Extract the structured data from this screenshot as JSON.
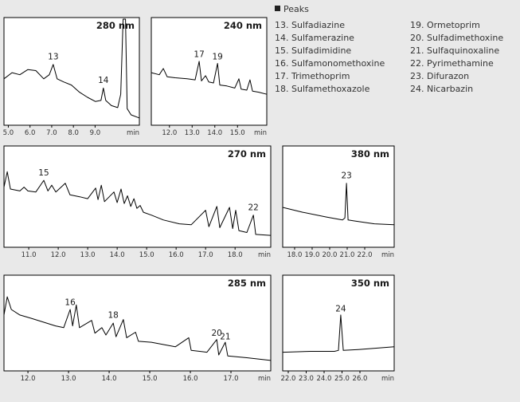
{
  "chart_data": [
    {
      "type": "line",
      "title": "280 nm",
      "xlabel": "min",
      "color": "#000000",
      "x": [
        4.8,
        5.17,
        5.53,
        5.9,
        6.27,
        6.63,
        6.89,
        7.07,
        7.25,
        7.55,
        7.91,
        8.28,
        8.65,
        9.01,
        9.27,
        9.38,
        9.49,
        9.75,
        10.04,
        10.18,
        10.29,
        10.4,
        10.48,
        10.66,
        11.03
      ],
      "values": [
        42,
        48,
        46,
        51,
        50,
        42,
        46,
        56,
        42,
        39,
        36,
        29,
        24,
        20,
        21,
        33,
        21,
        16,
        14,
        27,
        100,
        100,
        13,
        7,
        4
      ],
      "xlim": [
        4.8,
        11.04
      ],
      "ylim": [
        0,
        100
      ],
      "xticks": [
        {
          "value": 5,
          "label": "5.0"
        },
        {
          "value": 6,
          "label": "6.0"
        },
        {
          "value": 7,
          "label": "7.0"
        },
        {
          "value": 8,
          "label": "8.0"
        },
        {
          "value": 9,
          "label": "9.0"
        }
      ],
      "annotations": [
        {
          "text": "13",
          "x": 7.07,
          "y": 61
        },
        {
          "text": "14",
          "x": 9.38,
          "y": 38
        }
      ]
    },
    {
      "type": "line",
      "title": "240 nm",
      "xlabel": "min",
      "color": "#000000",
      "x": [
        11.2,
        11.55,
        11.73,
        11.9,
        12.25,
        12.78,
        13.13,
        13.31,
        13.41,
        13.59,
        13.73,
        13.94,
        14.12,
        14.22,
        14.53,
        14.88,
        15.06,
        15.16,
        15.41,
        15.55,
        15.66,
        15.94,
        16.29
      ],
      "values": [
        48,
        46,
        52,
        44,
        43,
        42,
        41,
        59,
        40,
        45,
        39,
        38,
        57,
        36,
        35,
        33,
        42,
        32,
        31,
        41,
        30,
        29,
        27
      ],
      "xlim": [
        11.2,
        16.29
      ],
      "ylim": [
        0,
        100
      ],
      "xticks": [
        {
          "value": 12,
          "label": "12.0"
        },
        {
          "value": 13,
          "label": "13.0"
        },
        {
          "value": 14,
          "label": "14.0"
        },
        {
          "value": 15,
          "label": "15.0"
        }
      ],
      "annotations": [
        {
          "text": "17",
          "x": 13.31,
          "y": 63
        },
        {
          "text": "19",
          "x": 14.12,
          "y": 61
        }
      ]
    },
    {
      "type": "line",
      "title": "270 nm",
      "xlabel": "min",
      "color": "#000000",
      "x": [
        10.16,
        10.27,
        10.38,
        10.7,
        10.84,
        10.97,
        11.24,
        11.51,
        11.65,
        11.78,
        11.92,
        12.24,
        12.4,
        12.73,
        13.0,
        13.27,
        13.35,
        13.46,
        13.57,
        13.89,
        14.0,
        14.13,
        14.24,
        14.35,
        14.46,
        14.57,
        14.67,
        14.78,
        14.89,
        15.16,
        15.57,
        16.11,
        16.51,
        17.0,
        17.11,
        17.38,
        17.48,
        17.81,
        17.92,
        18.02,
        18.13,
        18.4,
        18.62,
        18.7,
        19.21
      ],
      "values": [
        59,
        75,
        57,
        55,
        59,
        55,
        54,
        66,
        55,
        61,
        54,
        63,
        51,
        49,
        47,
        58,
        46,
        61,
        44,
        54,
        43,
        57,
        42,
        50,
        39,
        47,
        37,
        40,
        33,
        30,
        25,
        21,
        20,
        35,
        18,
        39,
        17,
        38,
        16,
        35,
        14,
        12,
        30,
        10,
        9
      ],
      "xlim": [
        10.16,
        19.21
      ],
      "ylim": [
        0,
        100
      ],
      "xticks": [
        {
          "value": 11,
          "label": "11.0"
        },
        {
          "value": 12,
          "label": "12.0"
        },
        {
          "value": 13,
          "label": "13.0"
        },
        {
          "value": 14,
          "label": "14.0"
        },
        {
          "value": 15,
          "label": "15.0"
        },
        {
          "value": 16,
          "label": "16.0"
        },
        {
          "value": 17,
          "label": "17.0"
        },
        {
          "value": 18,
          "label": "18.0"
        }
      ],
      "annotations": [
        {
          "text": "15",
          "x": 11.51,
          "y": 71
        },
        {
          "text": "22",
          "x": 18.62,
          "y": 35
        }
      ]
    },
    {
      "type": "line",
      "title": "380 nm",
      "xlabel": "min",
      "color": "#000000",
      "x": [
        17.32,
        18.46,
        19.82,
        20.73,
        20.87,
        20.96,
        21.05,
        21.41,
        22.55,
        23.68
      ],
      "values": [
        38,
        33,
        28,
        25,
        27,
        63,
        25,
        24,
        21,
        20
      ],
      "xlim": [
        17.32,
        23.68
      ],
      "ylim": [
        0,
        100
      ],
      "xticks": [
        {
          "value": 18,
          "label": "18.0"
        },
        {
          "value": 19,
          "label": "19.0"
        },
        {
          "value": 20,
          "label": "20.0"
        },
        {
          "value": 21,
          "label": "21.0"
        },
        {
          "value": 22,
          "label": "22.0"
        }
      ],
      "annotations": [
        {
          "text": "23",
          "x": 20.96,
          "y": 68
        }
      ]
    },
    {
      "type": "line",
      "title": "285 nm",
      "xlabel": "min",
      "color": "#000000",
      "x": [
        11.41,
        11.49,
        11.59,
        11.8,
        12.1,
        12.39,
        12.68,
        12.88,
        13.04,
        13.1,
        13.19,
        13.27,
        13.57,
        13.65,
        13.82,
        13.92,
        14.1,
        14.17,
        14.35,
        14.43,
        14.65,
        14.72,
        15.04,
        15.63,
        15.96,
        16.02,
        16.41,
        16.65,
        16.7,
        16.86,
        16.92,
        17.39,
        17.98
      ],
      "values": [
        58,
        78,
        64,
        58,
        54,
        50,
        46,
        44,
        64,
        46,
        69,
        44,
        52,
        38,
        44,
        36,
        49,
        34,
        53,
        33,
        39,
        29,
        28,
        23,
        33,
        19,
        17,
        31,
        14,
        28,
        13,
        11,
        8
      ],
      "xlim": [
        11.41,
        17.98
      ],
      "ylim": [
        0,
        100
      ],
      "xticks": [
        {
          "value": 12,
          "label": "12.0"
        },
        {
          "value": 13,
          "label": "13.0"
        },
        {
          "value": 14,
          "label": "14.0"
        },
        {
          "value": 15,
          "label": "15.0"
        },
        {
          "value": 16,
          "label": "16.0"
        },
        {
          "value": 17,
          "label": "17.0"
        }
      ],
      "annotations": [
        {
          "text": "16",
          "x": 13.04,
          "y": 69
        },
        {
          "text": "18",
          "x": 14.1,
          "y": 55
        },
        {
          "text": "20",
          "x": 16.65,
          "y": 35
        },
        {
          "text": "21",
          "x": 16.86,
          "y": 31
        }
      ]
    },
    {
      "type": "line",
      "title": "350 nm",
      "xlabel": "min",
      "color": "#000000",
      "x": [
        21.69,
        23.25,
        24.58,
        24.8,
        24.93,
        25.07,
        25.91,
        27.91
      ],
      "values": [
        17,
        18,
        18,
        19,
        58,
        19,
        20,
        23
      ],
      "xlim": [
        21.69,
        27.91
      ],
      "ylim": [
        0,
        100
      ],
      "xticks": [
        {
          "value": 22,
          "label": "22.0"
        },
        {
          "value": 23,
          "label": "23.0"
        },
        {
          "value": 24,
          "label": "24.0"
        },
        {
          "value": 25,
          "label": "25.0"
        },
        {
          "value": 26,
          "label": "26.0"
        }
      ],
      "annotations": [
        {
          "text": "24",
          "x": 24.93,
          "y": 62
        }
      ]
    }
  ],
  "peak_list": {
    "title": "Peaks",
    "items": [
      "13. Sulfadiazine",
      "14. Sulfamerazine",
      "15. Sulfadimidine",
      "16. Sulfamonomethoxine",
      "17. Trimethoprim",
      "18. Sulfamethoxazole",
      "19. Ormetoprim",
      "20. Sulfadimethoxine",
      "21. Sulfaquinoxaline",
      "22. Pyrimethamine",
      "23. Difurazon",
      "24. Nicarbazin"
    ]
  }
}
